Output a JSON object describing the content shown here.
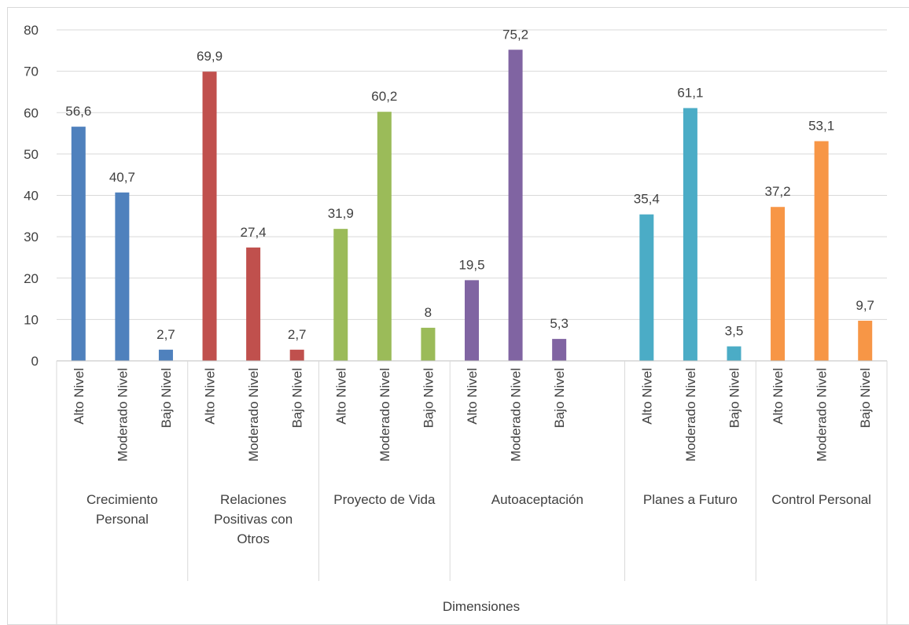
{
  "chart_data": {
    "type": "bar",
    "title": "",
    "xlabel": "Dimensiones",
    "ylabel": "",
    "ylim": [
      0,
      80
    ],
    "ytick_step": 10,
    "grid": true,
    "legend": "none",
    "subcategory_labels": [
      "Alto Nivel",
      "Moderado Nivel",
      "Bajo Nivel"
    ],
    "groups": [
      {
        "name_lines": [
          "Crecimiento",
          "Personal"
        ],
        "color": "#4F81BD",
        "values": [
          56.6,
          40.7,
          2.7
        ],
        "value_labels": [
          "56,6",
          "40,7",
          "2,7"
        ]
      },
      {
        "name_lines": [
          "Relaciones",
          "Positivas con",
          "Otros"
        ],
        "color": "#C0504D",
        "values": [
          69.9,
          27.4,
          2.7
        ],
        "value_labels": [
          "69,9",
          "27,4",
          "2,7"
        ]
      },
      {
        "name_lines": [
          "Proyecto de Vida"
        ],
        "color": "#9BBB59",
        "values": [
          31.9,
          60.2,
          8
        ],
        "value_labels": [
          "31,9",
          "60,2",
          "8"
        ]
      },
      {
        "name_lines": [
          "Autoaceptación"
        ],
        "color": "#8064A2",
        "values": [
          19.5,
          75.2,
          5.3
        ],
        "value_labels": [
          "19,5",
          "75,2",
          "5,3"
        ]
      },
      {
        "name_lines": [
          "Planes a Futuro"
        ],
        "color": "#4BACC6",
        "values": [
          35.4,
          61.1,
          3.5
        ],
        "value_labels": [
          "35,4",
          "61,1",
          "3,5"
        ]
      },
      {
        "name_lines": [
          "Control Personal"
        ],
        "color": "#F79646",
        "values": [
          37.2,
          53.1,
          9.7
        ],
        "value_labels": [
          "37,2",
          "53,1",
          "9,7"
        ]
      }
    ]
  }
}
